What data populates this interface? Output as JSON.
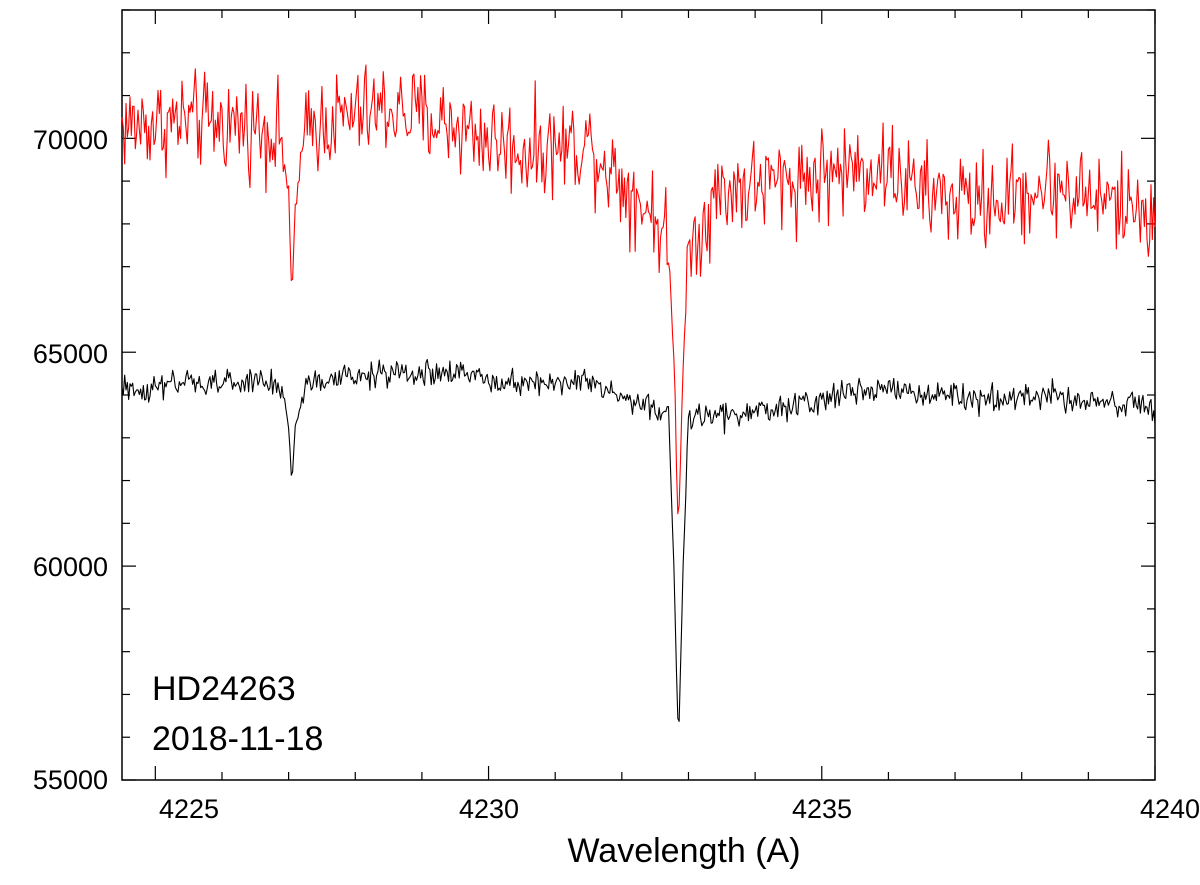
{
  "chart_data": {
    "type": "line",
    "title": "",
    "xlabel": "Wavelength (A)",
    "ylabel": "",
    "xlim": [
      4224.5,
      4240
    ],
    "ylim": [
      55000,
      73000
    ],
    "x_ticks": [
      "4225",
      "4230",
      "4235",
      "4240"
    ],
    "y_ticks": [
      "55000",
      "60000",
      "65000",
      "70000"
    ],
    "grid": false,
    "annotations": [
      "HD24263",
      "2018-11-18"
    ],
    "series": [
      {
        "color": "#ff0000",
        "noise": 1100,
        "points": [
          [
            4224.5,
            70300
          ],
          [
            4225.5,
            70400
          ],
          [
            4226.5,
            70300
          ],
          [
            4226.9,
            70100
          ],
          [
            4227.0,
            68500
          ],
          [
            4227.05,
            66200
          ],
          [
            4227.1,
            68500
          ],
          [
            4227.3,
            70300
          ],
          [
            4228.5,
            70700
          ],
          [
            4229.5,
            70300
          ],
          [
            4230.5,
            69700
          ],
          [
            4231.5,
            69900
          ],
          [
            4232.0,
            69000
          ],
          [
            4232.5,
            68200
          ],
          [
            4232.7,
            67500
          ],
          [
            4232.8,
            64000
          ],
          [
            4232.85,
            60500
          ],
          [
            4232.9,
            64000
          ],
          [
            4233.0,
            67500
          ],
          [
            4233.5,
            68800
          ],
          [
            4234.5,
            69000
          ],
          [
            4235.5,
            69300
          ],
          [
            4236.0,
            69300
          ],
          [
            4236.5,
            68700
          ],
          [
            4237.5,
            68500
          ],
          [
            4238.5,
            68900
          ],
          [
            4239.5,
            68400
          ],
          [
            4240.0,
            68300
          ]
        ]
      },
      {
        "color": "#000000",
        "noise": 320,
        "points": [
          [
            4224.5,
            64100
          ],
          [
            4225.5,
            64250
          ],
          [
            4226.5,
            64300
          ],
          [
            4226.9,
            64200
          ],
          [
            4227.0,
            63300
          ],
          [
            4227.05,
            61900
          ],
          [
            4227.1,
            63300
          ],
          [
            4227.3,
            64300
          ],
          [
            4228.5,
            64500
          ],
          [
            4229.5,
            64500
          ],
          [
            4230.5,
            64300
          ],
          [
            4231.5,
            64300
          ],
          [
            4232.0,
            63900
          ],
          [
            4232.5,
            63700
          ],
          [
            4232.7,
            63500
          ],
          [
            4232.78,
            60000
          ],
          [
            4232.85,
            55800
          ],
          [
            4232.92,
            60000
          ],
          [
            4233.0,
            63500
          ],
          [
            4233.5,
            63500
          ],
          [
            4234.5,
            63700
          ],
          [
            4235.5,
            64100
          ],
          [
            4236.0,
            64200
          ],
          [
            4236.5,
            64000
          ],
          [
            4237.5,
            63900
          ],
          [
            4238.5,
            64000
          ],
          [
            4239.5,
            63800
          ],
          [
            4240.0,
            63600
          ]
        ]
      }
    ]
  }
}
